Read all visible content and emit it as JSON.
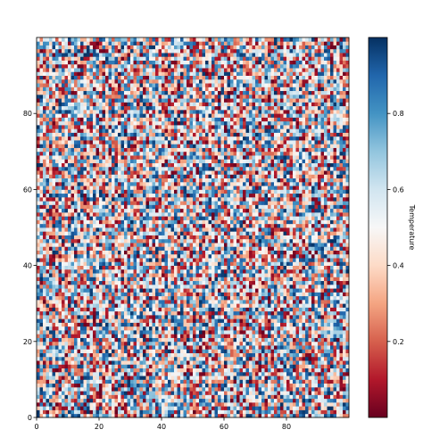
{
  "chart_data": {
    "type": "heatmap",
    "title": "",
    "xlabel": "",
    "ylabel": "",
    "grid_size": [
      100,
      100
    ],
    "value_description": "random uniform values in [0, 1], one per cell",
    "seed": 12345,
    "xlim": [
      0,
      100
    ],
    "ylim": [
      0,
      100
    ],
    "xticks": [
      0,
      20,
      40,
      60,
      80
    ],
    "yticks": [
      0,
      20,
      40,
      60,
      80
    ],
    "colormap": "RdBu",
    "colormap_stops": [
      "#67001f",
      "#b2182b",
      "#d6604d",
      "#f4a582",
      "#fddbc7",
      "#f7f7f7",
      "#d1e5f0",
      "#92c5de",
      "#4393c3",
      "#2166ac",
      "#053061"
    ],
    "colorbar": {
      "label": "Temperature",
      "range": [
        0,
        1
      ],
      "ticks": [
        "0.2",
        "0.4",
        "0.6",
        "0.8"
      ]
    },
    "grid": false
  }
}
